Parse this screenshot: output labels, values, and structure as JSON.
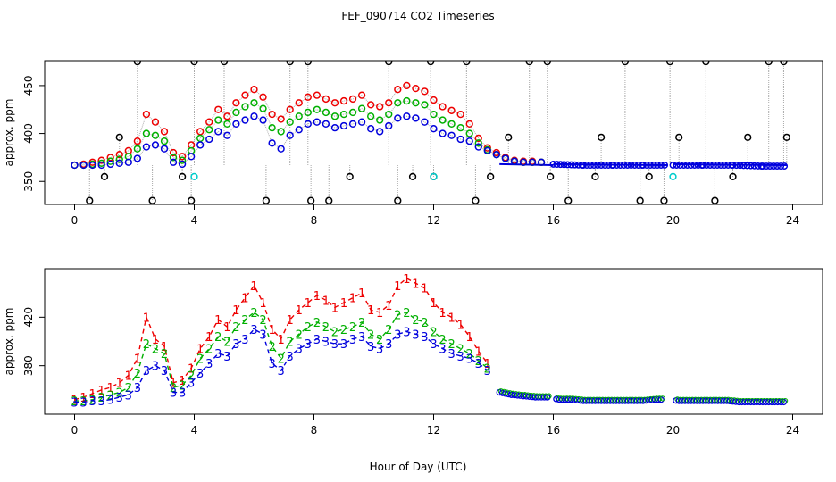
{
  "title": "FEF_090714  CO2 Timeseries",
  "xlabel": "Hour of Day (UTC)",
  "colors": {
    "s1": "#ee0000",
    "s2": "#00b000",
    "s3": "#0000dd",
    "outlier": "#000000",
    "cyan": "#00cccc",
    "drop": "#aaaaaa"
  },
  "chart_data": [
    {
      "type": "scatter",
      "ylabel": "approx. ppm",
      "xlim": [
        -1,
        25
      ],
      "ylim": [
        326,
        476
      ],
      "xticks": [
        0,
        4,
        8,
        12,
        16,
        20,
        24
      ],
      "yticks": [
        350,
        400,
        450
      ],
      "grid": false,
      "legend": "none",
      "series": [
        {
          "values_x": [
            0.0,
            0.3,
            0.6,
            0.9,
            1.2,
            1.5,
            1.8,
            2.1,
            2.4,
            2.7,
            3.0,
            3.3,
            3.6,
            3.9,
            4.2,
            4.5,
            4.8,
            5.1,
            5.4,
            5.7,
            6.0,
            6.3,
            6.6,
            6.9,
            7.2,
            7.5,
            7.8,
            8.1,
            8.4,
            8.7,
            9.0,
            9.3,
            9.6,
            9.9,
            10.2,
            10.5,
            10.8,
            11.1,
            11.4,
            11.7,
            12.0,
            12.3,
            12.6,
            12.9,
            13.2,
            13.5,
            13.8,
            14.1,
            14.4,
            14.7,
            15.0,
            15.3,
            15.6
          ],
          "values_y": [
            367,
            368,
            370,
            372,
            375,
            378,
            382,
            392,
            420,
            412,
            402,
            380,
            376,
            388,
            402,
            412,
            425,
            418,
            432,
            440,
            446,
            438,
            420,
            415,
            425,
            432,
            438,
            440,
            436,
            432,
            434,
            436,
            440,
            430,
            428,
            432,
            446,
            450,
            447,
            444,
            435,
            428,
            424,
            420,
            410,
            395,
            385,
            380,
            375,
            372,
            371,
            371,
            370
          ]
        },
        {
          "values_x": [
            0.0,
            0.3,
            0.6,
            0.9,
            1.2,
            1.5,
            1.8,
            2.1,
            2.4,
            2.7,
            3.0,
            3.3,
            3.6,
            3.9,
            4.2,
            4.5,
            4.8,
            5.1,
            5.4,
            5.7,
            6.0,
            6.3,
            6.6,
            6.9,
            7.2,
            7.5,
            7.8,
            8.1,
            8.4,
            8.7,
            9.0,
            9.3,
            9.6,
            9.9,
            10.2,
            10.5,
            10.8,
            11.1,
            11.4,
            11.7,
            12.0,
            12.3,
            12.6,
            12.9,
            13.2,
            13.5,
            13.8,
            14.1,
            14.4,
            14.7,
            15.0,
            15.3,
            15.6
          ],
          "values_y": [
            367,
            367,
            368,
            369,
            371,
            373,
            376,
            384,
            400,
            398,
            392,
            375,
            372,
            382,
            395,
            404,
            414,
            410,
            422,
            428,
            432,
            426,
            406,
            402,
            412,
            418,
            422,
            425,
            422,
            418,
            420,
            422,
            426,
            418,
            414,
            420,
            432,
            434,
            432,
            430,
            420,
            414,
            410,
            406,
            400,
            390,
            383,
            378,
            374,
            371,
            370,
            370,
            370
          ]
        },
        {
          "values_x": [
            0.0,
            0.3,
            0.6,
            0.9,
            1.2,
            1.5,
            1.8,
            2.1,
            2.4,
            2.7,
            3.0,
            3.3,
            3.6,
            3.9,
            4.2,
            4.5,
            4.8,
            5.1,
            5.4,
            5.7,
            6.0,
            6.3,
            6.6,
            6.9,
            7.2,
            7.5,
            7.8,
            8.1,
            8.4,
            8.7,
            9.0,
            9.3,
            9.6,
            9.9,
            10.2,
            10.5,
            10.8,
            11.1,
            11.4,
            11.7,
            12.0,
            12.3,
            12.6,
            12.9,
            13.2,
            13.5,
            13.8,
            14.1,
            14.4,
            14.7,
            15.0,
            15.3,
            15.6
          ],
          "values_y": [
            367,
            367,
            367,
            367,
            368,
            369,
            370,
            374,
            386,
            388,
            384,
            370,
            368,
            376,
            388,
            394,
            402,
            398,
            410,
            414,
            418,
            414,
            390,
            384,
            398,
            404,
            410,
            412,
            410,
            406,
            408,
            410,
            412,
            405,
            402,
            408,
            416,
            418,
            416,
            412,
            405,
            400,
            398,
            394,
            392,
            386,
            382,
            378,
            374,
            371,
            370,
            370,
            370
          ]
        },
        {
          "values_x": [
            0.5,
            1.0,
            1.5,
            2.1,
            2.6,
            3.6,
            3.9,
            4.0,
            5.0,
            6.4,
            7.2,
            7.8,
            7.9,
            8.5,
            9.2,
            10.5,
            10.8,
            11.3,
            11.9,
            12.0,
            13.1,
            13.4,
            13.9,
            14.5,
            15.2,
            15.8,
            15.9,
            16.5,
            17.4,
            17.6,
            18.4,
            18.9,
            19.2,
            19.7,
            19.9,
            20.2,
            21.1,
            21.4,
            22.0,
            22.5,
            23.2,
            23.7,
            23.8
          ],
          "values_y": [
            330,
            355,
            396,
            475,
            330,
            355,
            330,
            475,
            475,
            330,
            475,
            475,
            330,
            330,
            355,
            475,
            330,
            355,
            475,
            355,
            475,
            330,
            355,
            396,
            475,
            475,
            355,
            330,
            355,
            396,
            475,
            330,
            355,
            330,
            475,
            396,
            475,
            330,
            355,
            396,
            475,
            475,
            396
          ]
        },
        {
          "values_x": [
            4.0,
            12.0,
            20.0
          ],
          "values_y": [
            355,
            355,
            355
          ]
        },
        {
          "values_x": [
            16.0,
            17.0,
            18.0,
            19.0,
            19.8,
            20.0,
            21.0,
            22.0,
            23.0,
            23.8
          ],
          "values_y": [
            368,
            367,
            367,
            367,
            367,
            367,
            367,
            367,
            366,
            366
          ]
        }
      ]
    },
    {
      "type": "scatter",
      "ylabel": "approx. ppm",
      "xlim": [
        -1,
        25
      ],
      "ylim": [
        340,
        460
      ],
      "xticks": [
        0,
        4,
        8,
        12,
        16,
        20,
        24
      ],
      "yticks": [
        380,
        420
      ],
      "grid": false,
      "legend": "none",
      "series": [
        {
          "point_label": "1",
          "values_x": [
            0.0,
            0.3,
            0.6,
            0.9,
            1.2,
            1.5,
            1.8,
            2.1,
            2.4,
            2.7,
            3.0,
            3.3,
            3.6,
            3.9,
            4.2,
            4.5,
            4.8,
            5.1,
            5.4,
            5.7,
            6.0,
            6.3,
            6.6,
            6.9,
            7.2,
            7.5,
            7.8,
            8.1,
            8.4,
            8.7,
            9.0,
            9.3,
            9.6,
            9.9,
            10.2,
            10.5,
            10.8,
            11.1,
            11.4,
            11.7,
            12.0,
            12.3,
            12.6,
            12.9,
            13.2,
            13.5,
            13.8
          ],
          "values_y": [
            352,
            354,
            357,
            360,
            362,
            366,
            372,
            386,
            420,
            402,
            396,
            366,
            368,
            378,
            394,
            404,
            418,
            412,
            426,
            436,
            446,
            432,
            410,
            402,
            418,
            426,
            432,
            438,
            434,
            428,
            432,
            436,
            440,
            426,
            424,
            430,
            446,
            452,
            448,
            444,
            432,
            424,
            420,
            414,
            404,
            392,
            382
          ]
        },
        {
          "point_label": "2",
          "values_x": [
            0.0,
            0.3,
            0.6,
            0.9,
            1.2,
            1.5,
            1.8,
            2.1,
            2.4,
            2.7,
            3.0,
            3.3,
            3.6,
            3.9,
            4.2,
            4.5,
            4.8,
            5.1,
            5.4,
            5.7,
            6.0,
            6.3,
            6.6,
            6.9,
            7.2,
            7.5,
            7.8,
            8.1,
            8.4,
            8.7,
            9.0,
            9.3,
            9.6,
            9.9,
            10.2,
            10.5,
            10.8,
            11.1,
            11.4,
            11.7,
            12.0,
            12.3,
            12.6,
            12.9,
            13.2,
            13.5,
            13.8
          ],
          "values_y": [
            351,
            351,
            352,
            354,
            356,
            358,
            362,
            374,
            398,
            394,
            390,
            362,
            364,
            372,
            386,
            394,
            404,
            400,
            412,
            418,
            424,
            418,
            396,
            386,
            400,
            406,
            412,
            416,
            412,
            408,
            410,
            412,
            416,
            406,
            402,
            410,
            422,
            424,
            418,
            416,
            408,
            402,
            398,
            394,
            390,
            384,
            378
          ]
        },
        {
          "point_label": "3",
          "values_x": [
            0.0,
            0.3,
            0.6,
            0.9,
            1.2,
            1.5,
            1.8,
            2.1,
            2.4,
            2.7,
            3.0,
            3.3,
            3.6,
            3.9,
            4.2,
            4.5,
            4.8,
            5.1,
            5.4,
            5.7,
            6.0,
            6.3,
            6.6,
            6.9,
            7.2,
            7.5,
            7.8,
            8.1,
            8.4,
            8.7,
            9.0,
            9.3,
            9.6,
            9.9,
            10.2,
            10.5,
            10.8,
            11.1,
            11.4,
            11.7,
            12.0,
            12.3,
            12.6,
            12.9,
            13.2,
            13.5,
            13.8
          ],
          "values_y": [
            350,
            350,
            351,
            351,
            352,
            354,
            356,
            362,
            376,
            380,
            376,
            358,
            358,
            366,
            374,
            382,
            390,
            388,
            398,
            402,
            410,
            406,
            382,
            376,
            388,
            394,
            398,
            402,
            400,
            398,
            398,
            402,
            404,
            396,
            394,
            398,
            406,
            408,
            406,
            404,
            398,
            394,
            390,
            388,
            386,
            382,
            376
          ]
        },
        {
          "values_x": [
            14.2,
            14.6,
            15.0,
            15.4,
            15.8,
            16.2,
            16.6,
            17.0,
            17.4,
            17.8,
            18.2,
            18.6,
            19.0,
            19.4,
            19.8,
            20.2,
            20.6,
            21.0,
            21.4,
            21.8,
            22.2,
            22.6,
            23.0,
            23.4,
            23.8
          ],
          "values_y": [
            358,
            356,
            355,
            354,
            354,
            352,
            352,
            351,
            351,
            351,
            351,
            351,
            351,
            352,
            352,
            351,
            351,
            351,
            351,
            351,
            350,
            350,
            350,
            350,
            350
          ]
        }
      ]
    }
  ]
}
